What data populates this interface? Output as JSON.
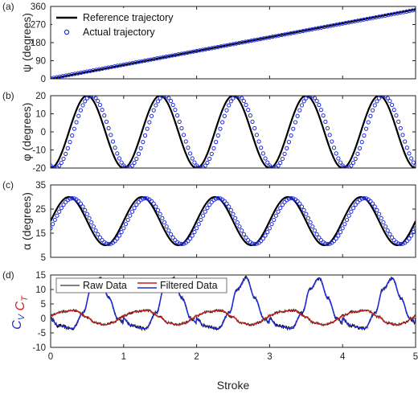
{
  "chart_data": [
    {
      "type": "line",
      "panel_label": "(a)",
      "ylabel": "ψ (degrees)",
      "xlim": [
        0,
        5
      ],
      "ylim": [
        0,
        360
      ],
      "yticks": [
        "0",
        "90",
        "180",
        "270",
        "360"
      ],
      "xticks": [
        "",
        "",
        "",
        "",
        "",
        ""
      ],
      "legend": {
        "position": "top-left",
        "entries": [
          "Reference trajectory",
          "Actual trajectory"
        ]
      },
      "series": [
        {
          "name": "Reference trajectory",
          "style": "line",
          "color": "#000000",
          "function": "linear",
          "start": 0,
          "end": 345
        },
        {
          "name": "Actual trajectory",
          "style": "circle-markers",
          "color": "#1f2bd9",
          "function": "linear",
          "start": 2,
          "end": 343
        }
      ]
    },
    {
      "type": "line",
      "panel_label": "(b)",
      "ylabel": "φ (degrees)",
      "xlim": [
        0,
        5
      ],
      "ylim": [
        -20,
        20
      ],
      "yticks": [
        "-20",
        "-10",
        "0",
        "10",
        "20"
      ],
      "xticks": [
        "",
        "",
        "",
        "",
        "",
        ""
      ],
      "series": [
        {
          "name": "Reference trajectory",
          "style": "line",
          "color": "#000000",
          "function": "sine",
          "amplitude": 20,
          "offset": 0,
          "peak_at": 0.5,
          "period": 1
        },
        {
          "name": "Actual trajectory",
          "style": "circle-markers",
          "color": "#1f2bd9",
          "function": "sine",
          "amplitude": 20,
          "offset": 0,
          "peak_at": 0.56,
          "period": 1
        }
      ]
    },
    {
      "type": "line",
      "panel_label": "(c)",
      "ylabel": "α (degrees)",
      "xlim": [
        0,
        5
      ],
      "ylim": [
        5,
        35
      ],
      "yticks": [
        "5",
        "15",
        "25",
        "35"
      ],
      "xticks": [
        "",
        "",
        "",
        "",
        "",
        ""
      ],
      "series": [
        {
          "name": "Reference trajectory",
          "style": "line",
          "color": "#000000",
          "function": "sine",
          "amplitude": 10,
          "offset": 20,
          "peak_at": 0.25,
          "period": 1
        },
        {
          "name": "Actual trajectory",
          "style": "circle-markers",
          "color": "#1f2bd9",
          "function": "sine",
          "amplitude": 9.5,
          "offset": 20,
          "peak_at": 0.3,
          "period": 1
        }
      ]
    },
    {
      "type": "line",
      "panel_label": "(d)",
      "ylabel": [
        "C_V",
        "C_T"
      ],
      "xlabel": "Stroke",
      "xlim": [
        0,
        5
      ],
      "ylim": [
        -10,
        15
      ],
      "yticks": [
        "-10",
        "-5",
        "0",
        "5",
        "10",
        "15"
      ],
      "xticks": [
        "0",
        "1",
        "2",
        "3",
        "4",
        "5"
      ],
      "legend": {
        "position": "top-left",
        "entries": [
          "Raw Data",
          "Filtered Data"
        ]
      },
      "series": [
        {
          "name": "C_V filtered",
          "color": "#1f2bd9",
          "keyframes": [
            [
              0,
              0
            ],
            [
              0.1,
              -2.5
            ],
            [
              0.3,
              -3.5
            ],
            [
              0.45,
              2
            ],
            [
              0.55,
              10
            ],
            [
              0.68,
              14
            ],
            [
              0.8,
              7
            ],
            [
              0.92,
              0
            ],
            [
              1,
              -1.5
            ]
          ]
        },
        {
          "name": "C_T filtered",
          "color": "#c8201e",
          "keyframes": [
            [
              0,
              1
            ],
            [
              0.15,
              2.3
            ],
            [
              0.33,
              2.8
            ],
            [
              0.5,
              0.5
            ],
            [
              0.6,
              -1.5
            ],
            [
              0.75,
              -2.2
            ],
            [
              0.85,
              -1.5
            ],
            [
              0.95,
              0
            ],
            [
              1,
              1
            ]
          ]
        },
        {
          "name": "Raw Data",
          "color": "#000000"
        }
      ]
    }
  ]
}
